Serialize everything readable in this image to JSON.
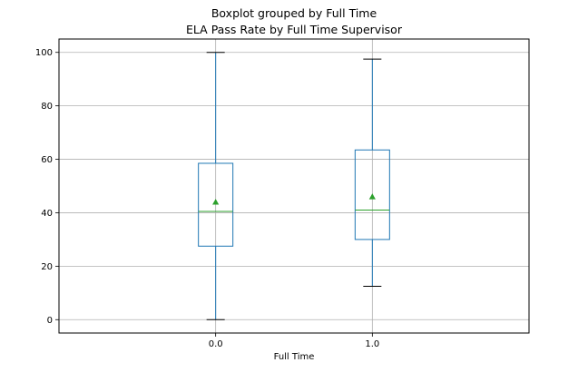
{
  "suptitle": "Boxplot grouped by Full Time",
  "chart_data": {
    "type": "box",
    "title": "ELA Pass Rate by Full Time Supervisor",
    "xlabel": "Full Time",
    "ylabel": "",
    "categories": [
      "0.0",
      "1.0"
    ],
    "ylim": [
      -5,
      105
    ],
    "yticks": [
      0,
      20,
      40,
      60,
      80,
      100
    ],
    "grid": true,
    "boxes": [
      {
        "category": "0.0",
        "whisker_low": 0,
        "q1": 27.5,
        "median": 40.5,
        "q3": 58.5,
        "whisker_high": 100,
        "mean": 44
      },
      {
        "category": "1.0",
        "whisker_low": 12.5,
        "q1": 30,
        "median": 41,
        "q3": 63.5,
        "whisker_high": 97.5,
        "mean": 46
      }
    ],
    "colors": {
      "box": "#1f77b4",
      "median": "#2ca02c",
      "mean_marker": "#2ca02c",
      "cap": "#000000",
      "grid": "#b0b0b0"
    }
  }
}
